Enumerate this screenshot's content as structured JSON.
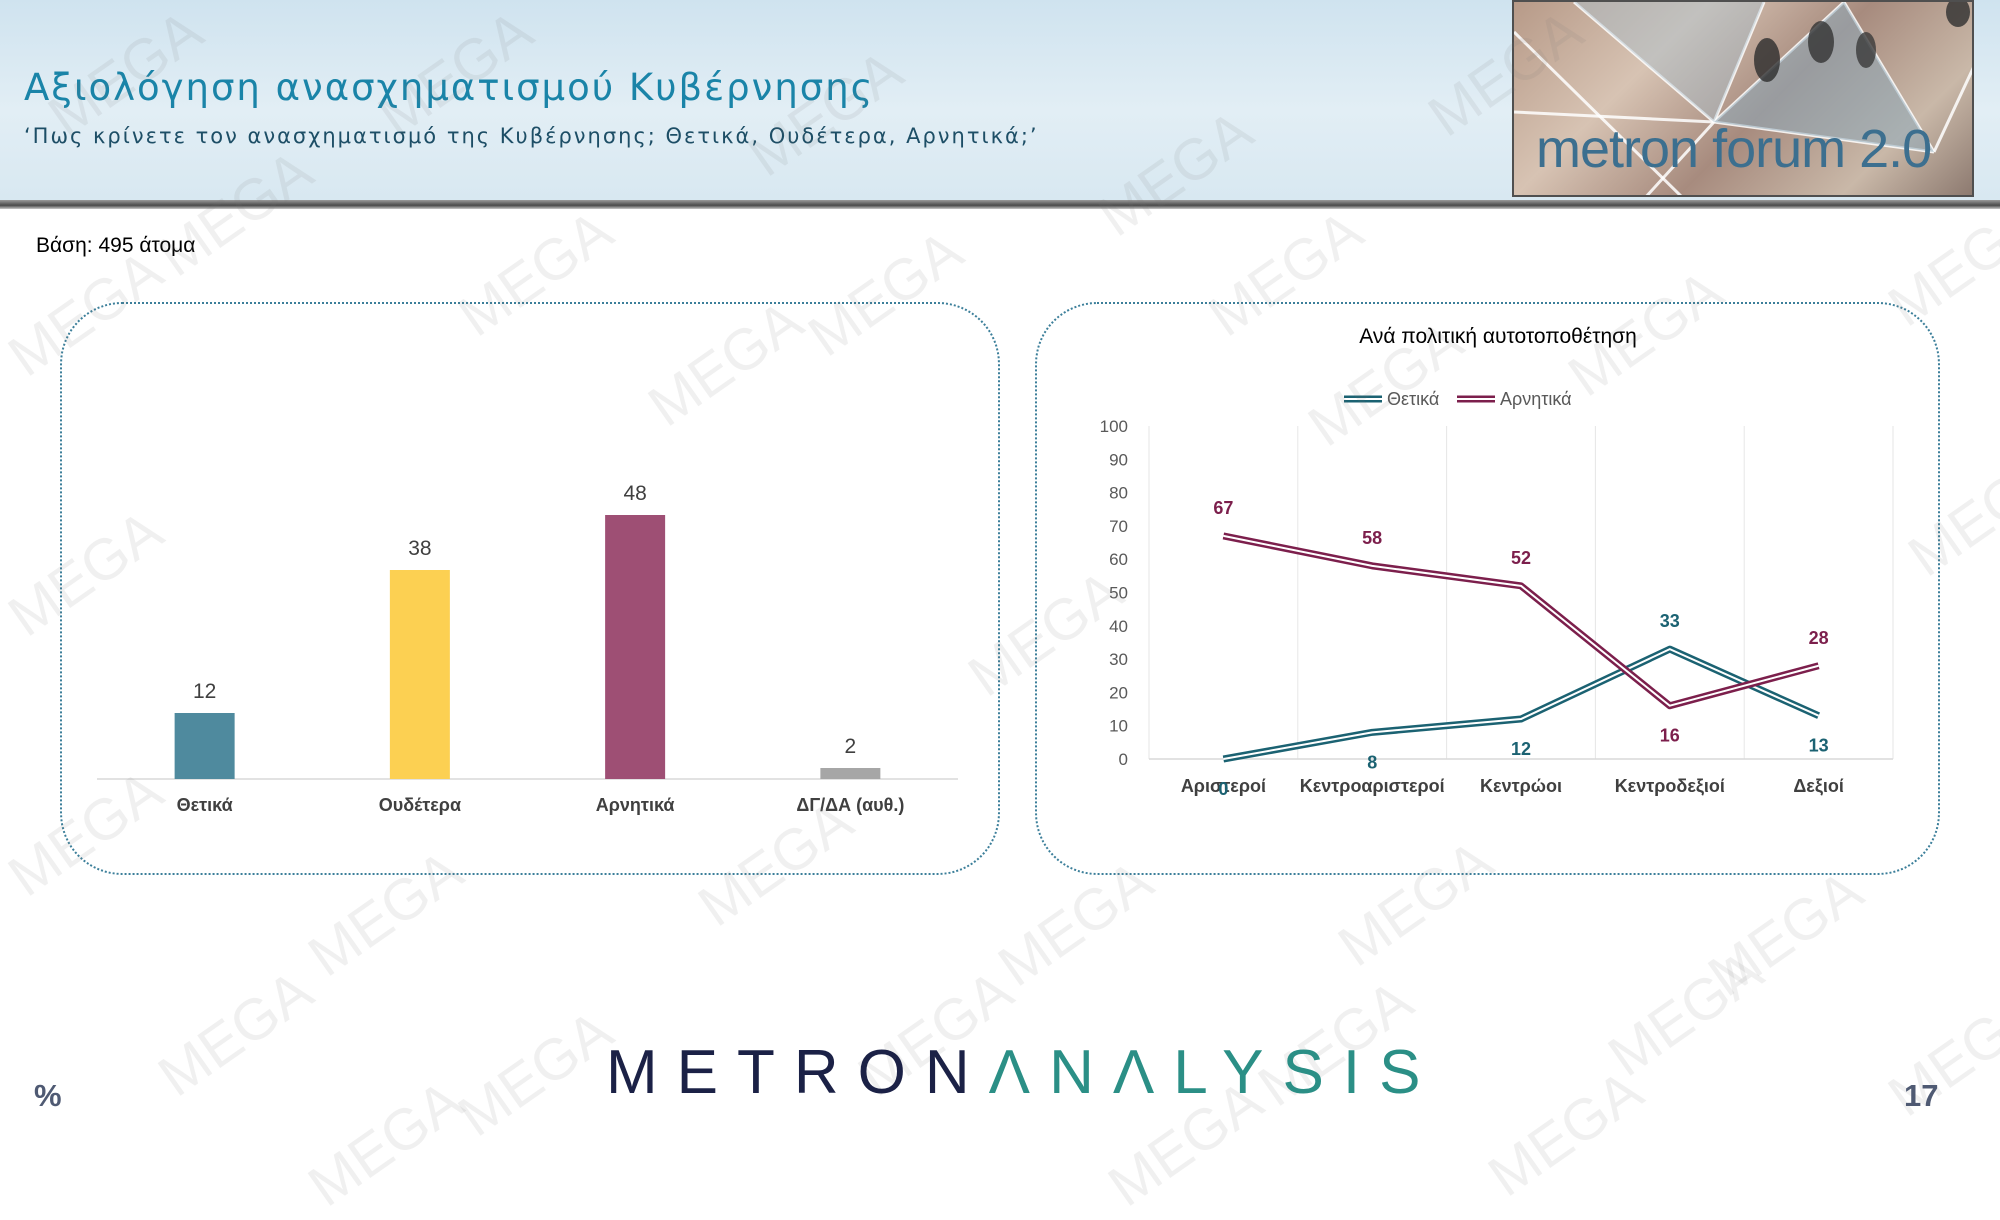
{
  "header": {
    "title": "Αξιολόγηση ανασχηματισμού Κυβέρνησης",
    "subtitle": "‘Πως κρίνετε τον ανασχηματισμό της Κυβέρνησης; Θετικά, Ουδέτερα, Αρνητικά;’",
    "logo_text": "metron forum 2.0"
  },
  "basis": "Βάση: 495 άτομα",
  "watermark_text": "MEGA",
  "footer": {
    "brand_part1": "METRON",
    "brand_part2": "ΛNΛLYSIS",
    "percent_symbol": "%",
    "page_number": "17"
  },
  "colors": {
    "title": "#1a84a8",
    "positive_bar": "#4f8a9e",
    "neutral_bar": "#fcd052",
    "negative_bar": "#9e4f74",
    "dk_bar": "#a6a6a6",
    "positive_line": "#1b6272",
    "negative_line": "#7c1f4c"
  },
  "chart_data": [
    {
      "type": "bar",
      "title": "",
      "xlabel": "",
      "ylabel": "",
      "categories": [
        "Θετικά",
        "Ουδέτερα",
        "Αρνητικά",
        "ΔΓ/ΔΑ (αυθ.)"
      ],
      "values": [
        12,
        38,
        48,
        2
      ],
      "colors": [
        "#4f8a9e",
        "#fcd052",
        "#9e4f74",
        "#a6a6a6"
      ],
      "ylim": [
        0,
        50
      ],
      "grid": false,
      "data_labels": true
    },
    {
      "type": "line",
      "title": "Ανά πολιτική αυτοτοποθέτηση",
      "xlabel": "",
      "ylabel": "",
      "categories": [
        "Αριστεροί",
        "Κεντροαριστεροί",
        "Κεντρώοι",
        "Κεντροδεξιοί",
        "Δεξιοί"
      ],
      "series": [
        {
          "name": "Θετικά",
          "values": [
            0,
            8,
            12,
            33,
            13
          ],
          "color": "#1b6272"
        },
        {
          "name": "Αρνητικά",
          "values": [
            67,
            58,
            52,
            16,
            28
          ],
          "color": "#7c1f4c"
        }
      ],
      "ylim": [
        0,
        100
      ],
      "yticks": [
        0,
        10,
        20,
        30,
        40,
        50,
        60,
        70,
        80,
        90,
        100
      ],
      "grid": "vertical",
      "legend": "top-center",
      "data_labels": true
    }
  ]
}
